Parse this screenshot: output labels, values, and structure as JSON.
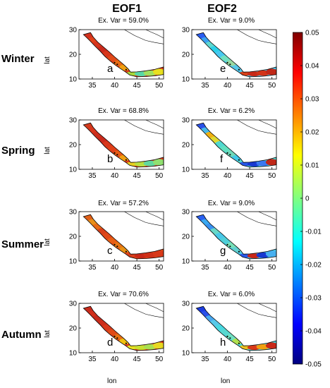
{
  "columns": [
    "EOF1",
    "EOF2"
  ],
  "rows": [
    {
      "season": "Winter",
      "panels": [
        {
          "letter": "a",
          "ex_var": "Ex. Var = 59.0%",
          "colors": [
            "#d3321e",
            "#e0401a",
            "#d6341c",
            "#c82a1c",
            "#d8381c",
            "#e04a18",
            "#e86a12",
            "#f0a010",
            "#a8d838",
            "#58d8a8",
            "#a0e060",
            "#e8e020"
          ]
        },
        {
          "letter": "e",
          "ex_var": "Ex. Var = 9.0%",
          "colors": [
            "#2a5cf0",
            "#3aa0f0",
            "#60d8d0",
            "#2ad0e8",
            "#48c8f0",
            "#70e0c0",
            "#9ad8a0",
            "#58c8e8",
            "#d84018",
            "#c82a18",
            "#d23418",
            "#c02818"
          ]
        }
      ]
    },
    {
      "season": "Spring",
      "panels": [
        {
          "letter": "b",
          "ex_var": "Ex. Var = 68.8%",
          "colors": [
            "#d33a1c",
            "#d8361c",
            "#cc2e1c",
            "#c82a1c",
            "#d8381c",
            "#e04018",
            "#e85a14",
            "#f0a010",
            "#e8d020",
            "#b8e040",
            "#60d8a0",
            "#90e070"
          ]
        },
        {
          "letter": "f",
          "ex_var": "Ex. Var = 6.2%",
          "colors": [
            "#2a50e8",
            "#48b8e8",
            "#f0b010",
            "#e0d830",
            "#50d8d0",
            "#60e0c0",
            "#70d8b8",
            "#40c8e8",
            "#2858e8",
            "#1838d0",
            "#3a78f0",
            "#c02818"
          ]
        }
      ]
    },
    {
      "season": "Summer",
      "panels": [
        {
          "letter": "c",
          "ex_var": "Ex. Var = 57.2%",
          "colors": [
            "#e06018",
            "#e8901a",
            "#e86a14",
            "#d8401a",
            "#e04818",
            "#e85e14",
            "#e87414",
            "#e89014",
            "#d83c1a",
            "#c82818",
            "#d03018",
            "#d83818"
          ]
        },
        {
          "letter": "g",
          "ex_var": "Ex. Var = 9.0%",
          "colors": [
            "#2a60f0",
            "#3aa8f0",
            "#3890f0",
            "#68d8c8",
            "#48c8e8",
            "#50d0d8",
            "#78e0b8",
            "#60d0d0",
            "#2a58e8",
            "#c82818",
            "#1838d0",
            "#48b0f0"
          ]
        }
      ]
    },
    {
      "season": "Autumn",
      "panels": [
        {
          "letter": "d",
          "ex_var": "Ex. Var = 70.6%",
          "colors": [
            "#c82a1c",
            "#d0301c",
            "#c42a1c",
            "#cc2e1c",
            "#d8381c",
            "#e04a18",
            "#e87014",
            "#f0c010",
            "#e8e020",
            "#c8e030",
            "#a8e050",
            "#e8d820"
          ]
        },
        {
          "letter": "h",
          "ex_var": "Ex. Var = 6.0%",
          "colors": [
            "#1c3ce0",
            "#2a50e8",
            "#48a8f0",
            "#58c8e8",
            "#48d8e0",
            "#58d8d0",
            "#70e0c0",
            "#b0e050",
            "#e8c020",
            "#d83818",
            "#f0a010",
            "#c82818"
          ]
        }
      ]
    }
  ],
  "axes": {
    "ylabel": "lat",
    "xlabel": "lon",
    "yticks": [
      "30",
      "20",
      "10"
    ],
    "xticks": [
      "35",
      "40",
      "45",
      "50"
    ]
  },
  "colorbar": {
    "ticks": [
      "0.05",
      "0.04",
      "0.03",
      "0.02",
      "0.01",
      "0",
      "-0.01",
      "-0.02",
      "-0.03",
      "-0.04",
      "-0.05"
    ],
    "range": [
      -0.05,
      0.05
    ],
    "colormap": "jet"
  }
}
